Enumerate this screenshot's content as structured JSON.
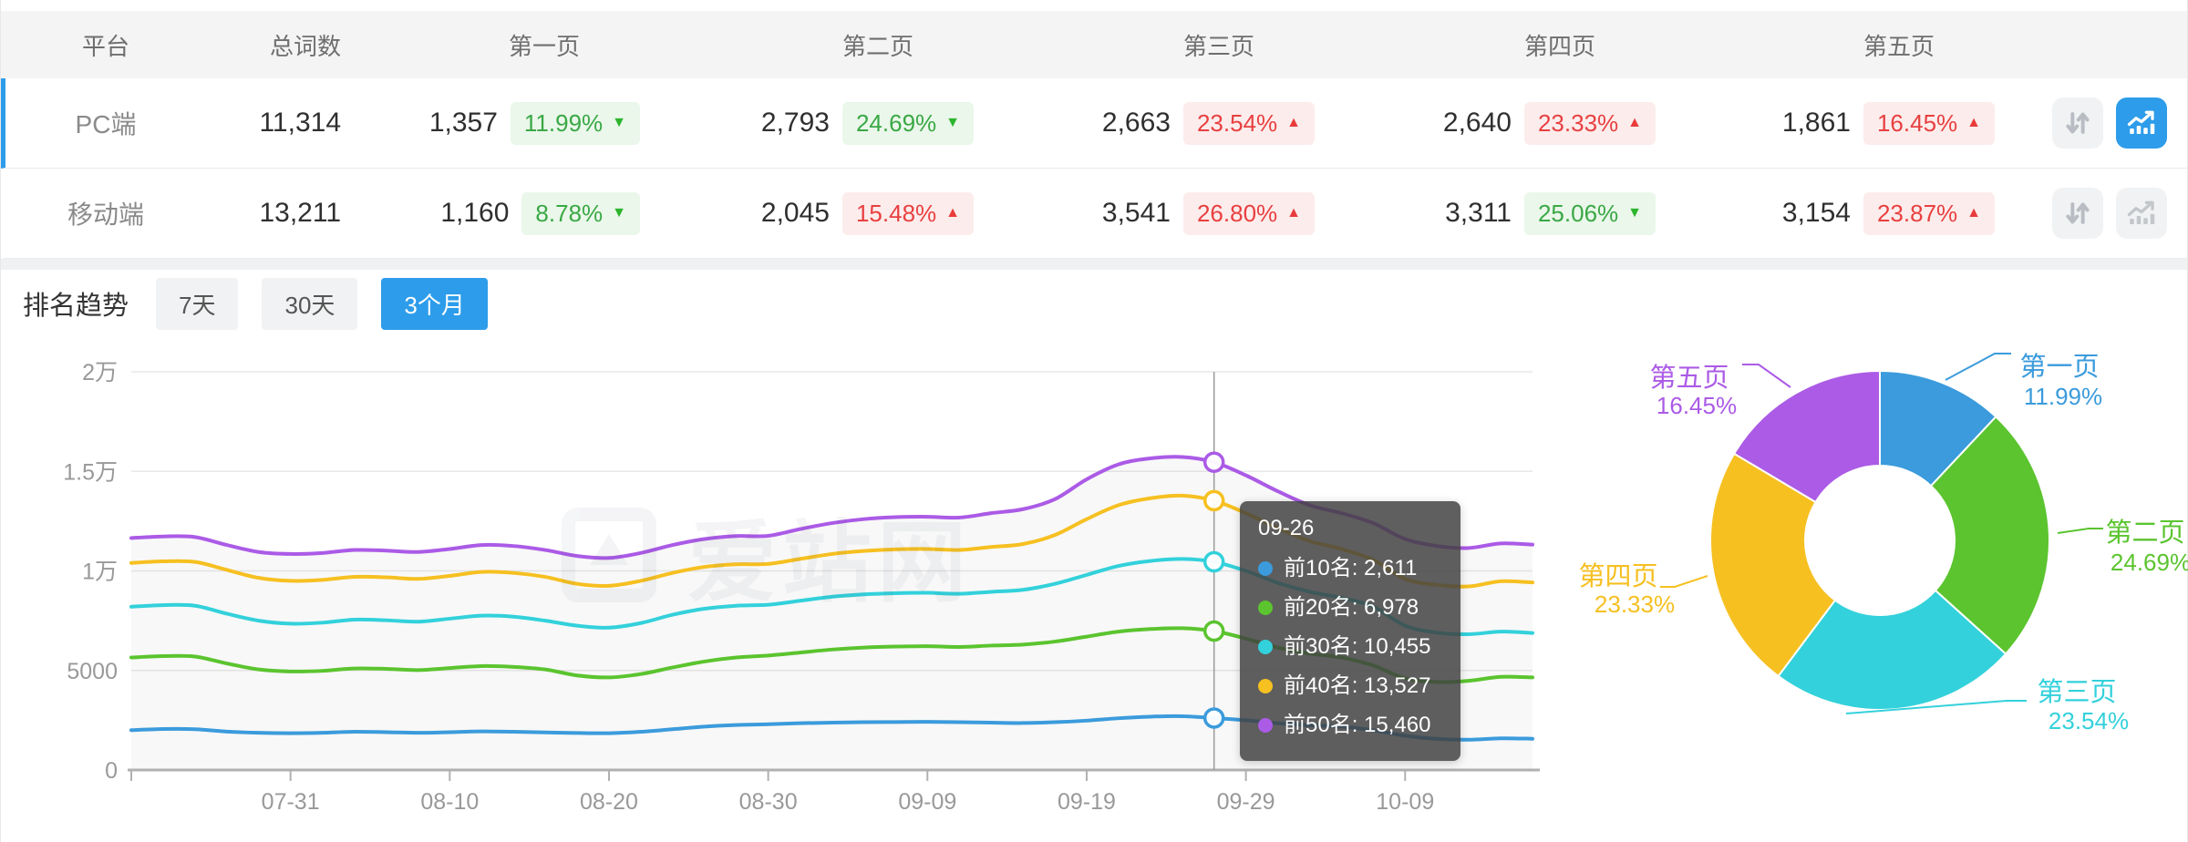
{
  "colors": {
    "accent": "#2D9CEA",
    "badge_up_red": "#e84040",
    "badge_down_green": "#3aa845",
    "series": [
      "#3B9BDC",
      "#5BC42F",
      "#33D1DB",
      "#F6C021",
      "#AB5BE6"
    ]
  },
  "table": {
    "columns": [
      "平台",
      "总词数",
      "第一页",
      "第二页",
      "第三页",
      "第四页",
      "第五页"
    ],
    "rows": [
      {
        "platform": "PC端",
        "total": "11,314",
        "selected": true,
        "trend_active": true,
        "pages": [
          {
            "count": "1,357",
            "pct": "11.99%",
            "dir": "down"
          },
          {
            "count": "2,793",
            "pct": "24.69%",
            "dir": "down"
          },
          {
            "count": "2,663",
            "pct": "23.54%",
            "dir": "up"
          },
          {
            "count": "2,640",
            "pct": "23.33%",
            "dir": "up"
          },
          {
            "count": "1,861",
            "pct": "16.45%",
            "dir": "up"
          }
        ]
      },
      {
        "platform": "移动端",
        "total": "13,211",
        "selected": false,
        "trend_active": false,
        "pages": [
          {
            "count": "1,160",
            "pct": "8.78%",
            "dir": "down"
          },
          {
            "count": "2,045",
            "pct": "15.48%",
            "dir": "up"
          },
          {
            "count": "3,541",
            "pct": "26.80%",
            "dir": "up"
          },
          {
            "count": "3,311",
            "pct": "25.06%",
            "dir": "down"
          },
          {
            "count": "3,154",
            "pct": "23.87%",
            "dir": "up"
          }
        ]
      }
    ]
  },
  "toolbar": {
    "title": "排名趋势",
    "tabs": [
      {
        "label": "7天",
        "active": false
      },
      {
        "label": "30天",
        "active": false
      },
      {
        "label": "3个月",
        "active": true
      }
    ]
  },
  "watermark": "爱站网",
  "chart_data": [
    {
      "type": "line",
      "title": "排名趋势 3个月",
      "x_ticks": [
        "07-31",
        "08-10",
        "08-20",
        "08-30",
        "09-09",
        "09-19",
        "09-29",
        "10-09"
      ],
      "y_ticks": [
        "0",
        "5000",
        "1万",
        "1.5万",
        "2万"
      ],
      "ylim": [
        0,
        20000
      ],
      "grid": true,
      "legend_position": "none",
      "series": [
        {
          "name": "前10名",
          "color": "#3B9BDC",
          "values": [
            2000,
            2060,
            2050,
            1930,
            1870,
            1850,
            1870,
            1920,
            1900,
            1870,
            1900,
            1940,
            1920,
            1890,
            1860,
            1850,
            1920,
            2050,
            2180,
            2260,
            2300,
            2350,
            2380,
            2400,
            2410,
            2420,
            2400,
            2380,
            2360,
            2400,
            2480,
            2600,
            2680,
            2700,
            2611,
            2500,
            2350,
            2250,
            2180,
            2000,
            1720,
            1560,
            1520,
            1590,
            1570
          ]
        },
        {
          "name": "前20名",
          "color": "#5BC42F",
          "values": [
            5650,
            5720,
            5700,
            5350,
            5050,
            4950,
            4980,
            5100,
            5080,
            5020,
            5120,
            5220,
            5180,
            5050,
            4750,
            4650,
            4820,
            5150,
            5450,
            5650,
            5750,
            5900,
            6050,
            6150,
            6200,
            6220,
            6180,
            6250,
            6300,
            6450,
            6700,
            6950,
            7080,
            7120,
            6978,
            6600,
            6150,
            5850,
            5650,
            5250,
            4600,
            4420,
            4480,
            4680,
            4650
          ]
        },
        {
          "name": "前30名",
          "color": "#33D1DB",
          "values": [
            8200,
            8280,
            8250,
            7850,
            7500,
            7350,
            7400,
            7550,
            7520,
            7450,
            7600,
            7750,
            7700,
            7500,
            7250,
            7150,
            7380,
            7800,
            8100,
            8250,
            8300,
            8500,
            8700,
            8820,
            8880,
            8900,
            8850,
            8950,
            9050,
            9350,
            9800,
            10250,
            10500,
            10600,
            10455,
            10000,
            9400,
            8950,
            8650,
            8200,
            7250,
            6900,
            6820,
            6950,
            6880
          ]
        },
        {
          "name": "前40名",
          "color": "#F6C021",
          "values": [
            10400,
            10480,
            10450,
            10050,
            9650,
            9500,
            9550,
            9700,
            9680,
            9600,
            9750,
            9950,
            9900,
            9700,
            9350,
            9250,
            9500,
            9900,
            10200,
            10330,
            10350,
            10600,
            10850,
            11000,
            11080,
            11100,
            11050,
            11200,
            11350,
            11800,
            12600,
            13300,
            13650,
            13780,
            13527,
            12900,
            12150,
            11500,
            11100,
            10550,
            9600,
            9300,
            9220,
            9480,
            9420
          ]
        },
        {
          "name": "前50名",
          "color": "#AB5BE6",
          "values": [
            11650,
            11730,
            11700,
            11300,
            10950,
            10850,
            10900,
            11050,
            11020,
            10950,
            11100,
            11300,
            11250,
            11050,
            10750,
            10650,
            10900,
            11300,
            11600,
            11750,
            11760,
            12100,
            12400,
            12600,
            12700,
            12720,
            12680,
            12900,
            13100,
            13600,
            14600,
            15350,
            15650,
            15720,
            15460,
            14800,
            14000,
            13300,
            12900,
            12400,
            11600,
            11250,
            11150,
            11380,
            11320
          ]
        }
      ],
      "hover": {
        "date": "09-26",
        "index": 34,
        "items": [
          {
            "name": "前10名",
            "value": "2,611",
            "color": "#3B9BDC"
          },
          {
            "name": "前20名",
            "value": "6,978",
            "color": "#5BC42F"
          },
          {
            "name": "前30名",
            "value": "10,455",
            "color": "#33D1DB"
          },
          {
            "name": "前40名",
            "value": "13,527",
            "color": "#F6C021"
          },
          {
            "name": "前50名",
            "value": "15,460",
            "color": "#AB5BE6"
          }
        ]
      }
    },
    {
      "type": "pie",
      "subtype": "donut",
      "labels": [
        "第一页",
        "第二页",
        "第三页",
        "第四页",
        "第五页"
      ],
      "values": [
        11.99,
        24.69,
        23.54,
        23.33,
        16.45
      ],
      "pct_labels": [
        "11.99%",
        "24.69%",
        "23.54%",
        "23.33%",
        "16.45%"
      ],
      "colors": [
        "#3B9BDC",
        "#5BC42F",
        "#33D1DB",
        "#F6C021",
        "#AB5BE6"
      ],
      "start_angle_deg": 0,
      "direction": "clockwise"
    }
  ]
}
